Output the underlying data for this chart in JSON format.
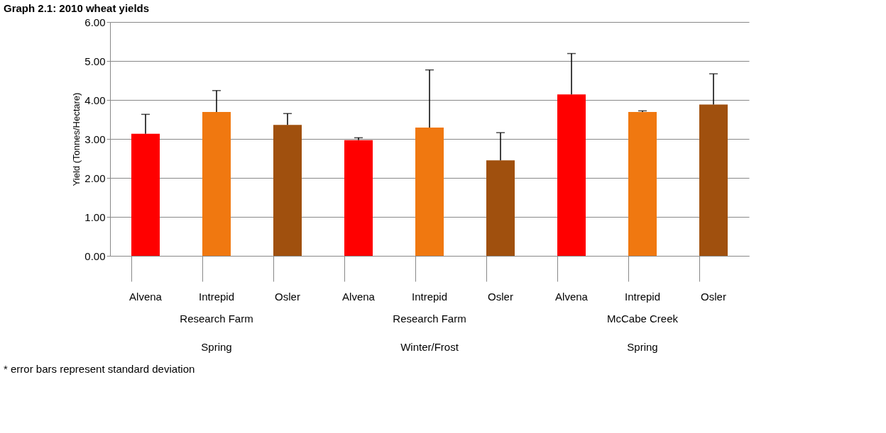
{
  "chart_data": {
    "type": "bar",
    "title": "Graph 2.1: 2010 wheat yields",
    "ylabel": "Yield (Tonnes/Hectare)",
    "categories": [
      "Alvena",
      "Intrepid",
      "Osler",
      "Alvena",
      "Intrepid",
      "Osler",
      "Alvena",
      "Intrepid",
      "Osler"
    ],
    "values": [
      3.13,
      3.69,
      3.36,
      2.97,
      3.29,
      2.45,
      4.14,
      3.69,
      3.88
    ],
    "colors": [
      "#ff0000",
      "#f07810",
      "#a0500e",
      "#ff0000",
      "#f07810",
      "#a0500e",
      "#ff0000",
      "#f07810",
      "#a0500e"
    ],
    "errors": [
      [
        3.13,
        3.63
      ],
      [
        3.69,
        4.24
      ],
      [
        3.36,
        3.65
      ],
      [
        2.97,
        3.03
      ],
      [
        3.29,
        4.77
      ],
      [
        2.45,
        3.16
      ],
      [
        4.14,
        5.19
      ],
      [
        3.69,
        3.72
      ],
      [
        3.88,
        4.67
      ]
    ],
    "ylim": [
      0,
      6
    ],
    "yticks": [
      {
        "value": 0,
        "label": "0.00"
      },
      {
        "value": 1,
        "label": "1.00"
      },
      {
        "value": 2,
        "label": "2.00"
      },
      {
        "value": 3,
        "label": "3.00"
      },
      {
        "value": 4,
        "label": "4.00"
      },
      {
        "value": 5,
        "label": "5.00"
      },
      {
        "value": 6,
        "label": "6.00"
      }
    ],
    "grid": "y",
    "annotations": [
      "Research Farm",
      "Research Farm",
      "McCabe Creek",
      "Spring",
      "Winter/Frost",
      "Spring",
      "* error bars represent standard deviation"
    ]
  }
}
